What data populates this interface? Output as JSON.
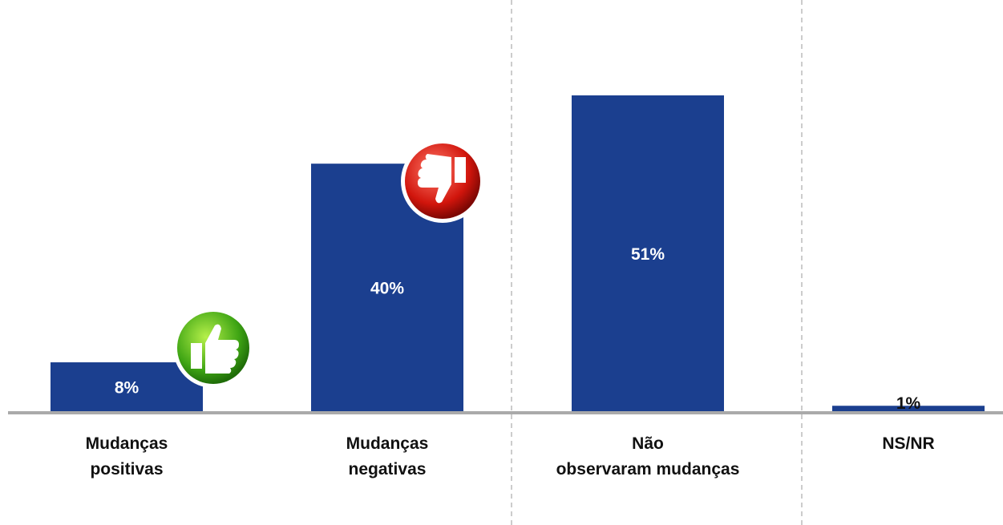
{
  "chart_data": {
    "type": "bar",
    "categories": [
      "Mudanças\npositivas",
      "Mudanças\nnegativas",
      "Não\nobservaram mudanças",
      "NS/NR"
    ],
    "values": [
      8,
      40,
      51,
      1
    ],
    "value_labels": [
      "8%",
      "40%",
      "51%",
      "1%"
    ],
    "color": "#1b3f8f"
  }
}
